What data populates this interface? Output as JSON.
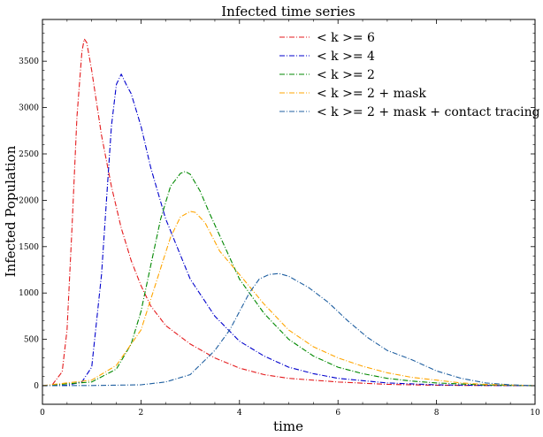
{
  "chart_data": {
    "type": "line",
    "title": "Infected time series",
    "xlabel": "time",
    "ylabel": "Infected Population",
    "xlim": [
      0,
      10
    ],
    "ylim": [
      -200,
      3950
    ],
    "xticks": [
      "0",
      "2",
      "4",
      "6",
      "8",
      "10"
    ],
    "yticks": [
      "0",
      "500",
      "1000",
      "1500",
      "2000",
      "2500",
      "3000",
      "3500"
    ],
    "legend_position": "top-right",
    "grid": false,
    "series": [
      {
        "name": "< k >= 6",
        "legend_label": "< k >= 6",
        "color": "#e41a1c",
        "line_style": "dash-dot",
        "x": [
          0,
          0.2,
          0.4,
          0.5,
          0.6,
          0.7,
          0.8,
          0.85,
          0.9,
          1.0,
          1.2,
          1.4,
          1.6,
          1.8,
          2.0,
          2.2,
          2.5,
          3.0,
          3.5,
          4.0,
          4.5,
          5.0,
          6.0,
          7.0,
          8.0,
          9.0,
          10.0
        ],
        "y": [
          0,
          10,
          150,
          600,
          1700,
          2900,
          3600,
          3740,
          3700,
          3400,
          2700,
          2150,
          1700,
          1350,
          1080,
          860,
          650,
          450,
          300,
          190,
          120,
          80,
          40,
          15,
          5,
          2,
          0
        ]
      },
      {
        "name": "< k >= 4",
        "legend_label": "< k >= 4",
        "color": "#0000cc",
        "line_style": "dash-dot",
        "x": [
          0,
          0.5,
          0.8,
          1.0,
          1.2,
          1.4,
          1.5,
          1.6,
          1.7,
          1.8,
          2.0,
          2.2,
          2.5,
          3.0,
          3.5,
          4.0,
          4.5,
          5.0,
          5.5,
          6.0,
          7.0,
          8.0,
          9.0,
          10.0
        ],
        "y": [
          0,
          5,
          40,
          200,
          1200,
          2800,
          3250,
          3360,
          3250,
          3150,
          2800,
          2350,
          1800,
          1150,
          750,
          480,
          320,
          200,
          130,
          80,
          30,
          10,
          3,
          0
        ]
      },
      {
        "name": "< k >= 2",
        "legend_label": "< k >= 2",
        "color": "#008800",
        "line_style": "dash-dot",
        "x": [
          0,
          1.0,
          1.5,
          1.8,
          2.0,
          2.2,
          2.4,
          2.6,
          2.8,
          2.9,
          3.0,
          3.2,
          3.4,
          3.7,
          4.0,
          4.5,
          5.0,
          5.5,
          6.0,
          6.5,
          7.0,
          7.5,
          8.0,
          9.0,
          10.0
        ],
        "y": [
          0,
          40,
          180,
          450,
          800,
          1300,
          1800,
          2150,
          2290,
          2310,
          2280,
          2100,
          1850,
          1500,
          1150,
          780,
          500,
          320,
          200,
          130,
          80,
          50,
          30,
          8,
          0
        ]
      },
      {
        "name": "< k >= 2 + mask",
        "legend_label": "< k >= 2 + mask",
        "color": "#ffa500",
        "line_style": "dash-dot",
        "x": [
          0,
          1.0,
          1.5,
          2.0,
          2.3,
          2.6,
          2.8,
          3.0,
          3.1,
          3.3,
          3.6,
          4.0,
          4.5,
          5.0,
          5.5,
          6.0,
          6.5,
          7.0,
          7.5,
          8.0,
          8.5,
          9.0,
          10.0
        ],
        "y": [
          0,
          60,
          220,
          600,
          1100,
          1600,
          1820,
          1880,
          1870,
          1760,
          1450,
          1200,
          880,
          600,
          420,
          300,
          210,
          140,
          90,
          60,
          30,
          15,
          0
        ]
      },
      {
        "name": "< k >= 2 + mask + contact tracing",
        "legend_label": "< k >= 2 + mask + contact tracing",
        "color": "#1f5fa0",
        "line_style": "dash-dot",
        "x": [
          0,
          1.0,
          2.0,
          2.5,
          3.0,
          3.5,
          3.8,
          4.0,
          4.2,
          4.4,
          4.6,
          4.8,
          5.0,
          5.2,
          5.4,
          5.8,
          6.2,
          6.6,
          7.0,
          7.5,
          8.0,
          8.5,
          9.0,
          9.5,
          10.0
        ],
        "y": [
          0,
          2,
          10,
          40,
          120,
          380,
          600,
          800,
          1000,
          1150,
          1200,
          1210,
          1180,
          1120,
          1060,
          900,
          700,
          520,
          380,
          280,
          160,
          80,
          30,
          10,
          0
        ]
      }
    ]
  }
}
